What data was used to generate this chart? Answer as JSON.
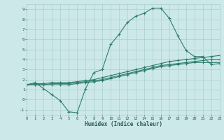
{
  "xlabel": "Humidex (Indice chaleur)",
  "xlim": [
    0,
    23
  ],
  "ylim": [
    -1.5,
    9.5
  ],
  "xticks": [
    0,
    1,
    2,
    3,
    4,
    5,
    6,
    7,
    8,
    9,
    10,
    11,
    12,
    13,
    14,
    15,
    16,
    17,
    18,
    19,
    20,
    21,
    22,
    23
  ],
  "yticks": [
    -1,
    0,
    1,
    2,
    3,
    4,
    5,
    6,
    7,
    8,
    9
  ],
  "line_color": "#2e7d6e",
  "bg_color": "#cce8e8",
  "grid_color": "#aacfcf",
  "line1_x": [
    0,
    1,
    2,
    3,
    4,
    5,
    6,
    7,
    8,
    9,
    10,
    11,
    12,
    13,
    14,
    15,
    16,
    17,
    18,
    19,
    20,
    21,
    22,
    23
  ],
  "line1_y": [
    1.5,
    1.7,
    1.1,
    0.5,
    -0.1,
    -1.2,
    -1.3,
    1.1,
    2.7,
    3.0,
    5.5,
    6.5,
    7.7,
    8.3,
    8.6,
    9.1,
    9.1,
    8.1,
    6.4,
    4.9,
    4.3,
    4.3,
    3.5,
    3.6
  ],
  "line2_x": [
    0,
    1,
    2,
    3,
    4,
    5,
    6,
    7,
    8,
    9,
    10,
    11,
    12,
    13,
    14,
    15,
    16,
    17,
    18,
    19,
    20,
    21,
    22,
    23
  ],
  "line2_y": [
    1.5,
    1.6,
    1.6,
    1.7,
    1.7,
    1.7,
    1.8,
    1.9,
    2.0,
    2.2,
    2.4,
    2.6,
    2.8,
    3.0,
    3.2,
    3.4,
    3.6,
    3.8,
    3.9,
    4.0,
    4.1,
    4.2,
    4.3,
    4.4
  ],
  "line3_x": [
    0,
    1,
    2,
    3,
    4,
    5,
    6,
    7,
    8,
    9,
    10,
    11,
    12,
    13,
    14,
    15,
    16,
    17,
    18,
    19,
    20,
    21,
    22,
    23
  ],
  "line3_y": [
    1.5,
    1.5,
    1.5,
    1.6,
    1.6,
    1.6,
    1.7,
    1.8,
    1.9,
    2.0,
    2.2,
    2.4,
    2.6,
    2.8,
    3.0,
    3.2,
    3.4,
    3.5,
    3.6,
    3.7,
    3.8,
    3.9,
    4.0,
    4.0
  ],
  "line4_x": [
    0,
    1,
    2,
    3,
    4,
    5,
    6,
    7,
    8,
    9,
    10,
    11,
    12,
    13,
    14,
    15,
    16,
    17,
    18,
    19,
    20,
    21,
    22,
    23
  ],
  "line4_y": [
    1.5,
    1.5,
    1.5,
    1.5,
    1.5,
    1.5,
    1.6,
    1.7,
    1.8,
    1.9,
    2.1,
    2.3,
    2.5,
    2.7,
    2.9,
    3.1,
    3.3,
    3.4,
    3.5,
    3.6,
    3.7,
    3.7,
    3.7,
    3.7
  ]
}
